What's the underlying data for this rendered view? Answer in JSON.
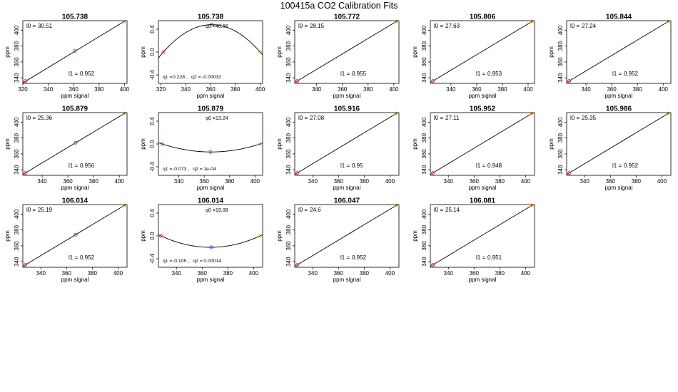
{
  "title": "100415a   CO2 Calibration Fits",
  "chart_data": [
    {
      "type": "line",
      "fit": "linear",
      "title": "105.738",
      "xlabel": "ppm signal",
      "ylabel": "ppm",
      "xlim": [
        320,
        402
      ],
      "ylim": [
        333,
        412
      ],
      "xticks": [
        320,
        340,
        360,
        380,
        400
      ],
      "yticks": [
        340,
        360,
        380,
        400
      ],
      "points": [
        {
          "x": 322,
          "y": 336,
          "color": "#e03030"
        },
        {
          "x": 361,
          "y": 374,
          "color": "#6040e0"
        },
        {
          "x": 400,
          "y": 411,
          "color": "#f0a020"
        }
      ],
      "curve": {
        "x1": 320,
        "y1": 333.6,
        "x2": 402,
        "y2": 413.2
      },
      "annotations": [
        {
          "label": "l0 =",
          "value": "30.51"
        },
        {
          "label": "l1 =",
          "value": "0.952"
        }
      ]
    },
    {
      "type": "line",
      "fit": "quadratic",
      "title": "105.738",
      "xlabel": "ppm signal",
      "ylabel": "ppm",
      "xlim": [
        318,
        402
      ],
      "ylim": [
        -0.55,
        0.55
      ],
      "xticks": [
        320,
        340,
        360,
        380,
        400
      ],
      "yticks": [
        -0.4,
        0.0,
        0.4
      ],
      "points": [
        {
          "x": 322,
          "y": 0.0,
          "color": "#e03030"
        },
        {
          "x": 361,
          "y": 0.48,
          "color": "#6040e0"
        },
        {
          "x": 400,
          "y": 0.0,
          "color": "#f0a020"
        }
      ],
      "curve": {
        "r1": 322,
        "r2": 400,
        "ext": 0.48
      },
      "annotations": [
        {
          "label": "q0 =",
          "value": "40.66"
        },
        {
          "label": "q1 =",
          "value": "0.228"
        },
        {
          "label": "q2 =",
          "value": "-0.00032"
        }
      ]
    },
    {
      "type": "line",
      "fit": "linear",
      "title": "105.772",
      "xlabel": "ppm signal",
      "ylabel": "ppm",
      "xlim": [
        323,
        404
      ],
      "ylim": [
        333,
        412
      ],
      "xticks": [
        340,
        360,
        380,
        400
      ],
      "yticks": [
        340,
        360,
        380,
        400
      ],
      "points": [
        {
          "x": 325,
          "y": 336,
          "color": "#e03030"
        },
        {
          "x": 402,
          "y": 411,
          "color": "#f0a020"
        }
      ],
      "curve": {
        "x1": 323,
        "y1": 334.1,
        "x2": 404,
        "y2": 412.9
      },
      "annotations": [
        {
          "label": "l0 =",
          "value": "28.15"
        },
        {
          "label": "l1 =",
          "value": "0.955"
        }
      ]
    },
    {
      "type": "line",
      "fit": "linear",
      "title": "105.806",
      "xlabel": "ppm signal",
      "ylabel": "ppm",
      "xlim": [
        324,
        405
      ],
      "ylim": [
        333,
        412
      ],
      "xticks": [
        340,
        360,
        380,
        400
      ],
      "yticks": [
        340,
        360,
        380,
        400
      ],
      "points": [
        {
          "x": 326,
          "y": 336,
          "color": "#e03030"
        },
        {
          "x": 403,
          "y": 411,
          "color": "#f0a020"
        }
      ],
      "curve": {
        "x1": 324,
        "y1": 334.1,
        "x2": 405,
        "y2": 412.9
      },
      "annotations": [
        {
          "label": "l0 =",
          "value": "27.63"
        },
        {
          "label": "l1 =",
          "value": "0.953"
        }
      ]
    },
    {
      "type": "line",
      "fit": "linear",
      "title": "105.844",
      "xlabel": "ppm signal",
      "ylabel": "ppm",
      "xlim": [
        325,
        406
      ],
      "ylim": [
        333,
        412
      ],
      "xticks": [
        340,
        360,
        380,
        400
      ],
      "yticks": [
        340,
        360,
        380,
        400
      ],
      "points": [
        {
          "x": 327,
          "y": 336,
          "color": "#e03030"
        },
        {
          "x": 404,
          "y": 411,
          "color": "#f0a020"
        }
      ],
      "curve": {
        "x1": 325,
        "y1": 334.1,
        "x2": 406,
        "y2": 412.9
      },
      "annotations": [
        {
          "label": "l0 =",
          "value": "27.24"
        },
        {
          "label": "l1 =",
          "value": "0.952"
        }
      ]
    },
    {
      "type": "line",
      "fit": "linear",
      "title": "105.879",
      "xlabel": "ppm signal",
      "ylabel": "ppm",
      "xlim": [
        325,
        406
      ],
      "ylim": [
        333,
        412
      ],
      "xticks": [
        340,
        360,
        380,
        400
      ],
      "yticks": [
        340,
        360,
        380,
        400
      ],
      "points": [
        {
          "x": 327,
          "y": 336,
          "color": "#e03030"
        },
        {
          "x": 366,
          "y": 374,
          "color": "#6040e0"
        },
        {
          "x": 404,
          "y": 411,
          "color": "#f0a020"
        }
      ],
      "curve": {
        "x1": 325,
        "y1": 334.1,
        "x2": 406,
        "y2": 412.9
      },
      "annotations": [
        {
          "label": "l0 =",
          "value": "25.36"
        },
        {
          "label": "l1 =",
          "value": "0.956"
        }
      ]
    },
    {
      "type": "line",
      "fit": "quadratic",
      "title": "105.879",
      "xlabel": "ppm signal",
      "ylabel": "ppm",
      "xlim": [
        324,
        406
      ],
      "ylim": [
        -0.55,
        0.55
      ],
      "xticks": [
        340,
        360,
        380,
        400
      ],
      "yticks": [
        -0.4,
        0.0,
        0.4
      ],
      "points": [
        {
          "x": 327,
          "y": 0.0,
          "color": "#e03030"
        },
        {
          "x": 365,
          "y": -0.14,
          "color": "#6040e0"
        },
        {
          "x": 404,
          "y": 0.0,
          "color": "#f0a020"
        }
      ],
      "curve": {
        "r1": 327,
        "r2": 404,
        "ext": -0.14
      },
      "annotations": [
        {
          "label": "q0 =",
          "value": "13.24"
        },
        {
          "label": "q1 =",
          "value": "-0.073"
        },
        {
          "label": "q2 =",
          "value": "1e-04"
        }
      ]
    },
    {
      "type": "line",
      "fit": "linear",
      "title": "105.916",
      "xlabel": "ppm signal",
      "ylabel": "ppm",
      "xlim": [
        326,
        407
      ],
      "ylim": [
        333,
        412
      ],
      "xticks": [
        340,
        360,
        380,
        400
      ],
      "yticks": [
        340,
        360,
        380,
        400
      ],
      "points": [
        {
          "x": 328,
          "y": 336,
          "color": "#e03030"
        },
        {
          "x": 405,
          "y": 411,
          "color": "#f0a020"
        }
      ],
      "curve": {
        "x1": 326,
        "y1": 334.1,
        "x2": 407,
        "y2": 412.9
      },
      "annotations": [
        {
          "label": "l0 =",
          "value": "27.08"
        },
        {
          "label": "l1 =",
          "value": "0.95"
        }
      ]
    },
    {
      "type": "line",
      "fit": "linear",
      "title": "105.952",
      "xlabel": "ppm signal",
      "ylabel": "ppm",
      "xlim": [
        326,
        407
      ],
      "ylim": [
        333,
        412
      ],
      "xticks": [
        340,
        360,
        380,
        400
      ],
      "yticks": [
        340,
        360,
        380,
        400
      ],
      "points": [
        {
          "x": 328,
          "y": 336,
          "color": "#e03030"
        },
        {
          "x": 405,
          "y": 411,
          "color": "#f0a020"
        }
      ],
      "curve": {
        "x1": 326,
        "y1": 334.1,
        "x2": 407,
        "y2": 412.9
      },
      "annotations": [
        {
          "label": "l0 =",
          "value": "27.11"
        },
        {
          "label": "l1 =",
          "value": "0.948"
        }
      ]
    },
    {
      "type": "line",
      "fit": "linear",
      "title": "105.986",
      "xlabel": "ppm signal",
      "ylabel": "ppm",
      "xlim": [
        326,
        407
      ],
      "ylim": [
        333,
        412
      ],
      "xticks": [
        340,
        360,
        380,
        400
      ],
      "yticks": [
        340,
        360,
        380,
        400
      ],
      "points": [
        {
          "x": 328,
          "y": 336,
          "color": "#e03030"
        },
        {
          "x": 405,
          "y": 411,
          "color": "#f0a020"
        }
      ],
      "curve": {
        "x1": 326,
        "y1": 334.1,
        "x2": 407,
        "y2": 412.9
      },
      "annotations": [
        {
          "label": "l0 =",
          "value": "25.35"
        },
        {
          "label": "l1 =",
          "value": "0.952"
        }
      ]
    },
    {
      "type": "line",
      "fit": "linear",
      "title": "106.014",
      "xlabel": "ppm signal",
      "ylabel": "ppm",
      "xlim": [
        326,
        407
      ],
      "ylim": [
        333,
        412
      ],
      "xticks": [
        340,
        360,
        380,
        400
      ],
      "yticks": [
        340,
        360,
        380,
        400
      ],
      "points": [
        {
          "x": 328,
          "y": 336,
          "color": "#e03030"
        },
        {
          "x": 367,
          "y": 374,
          "color": "#6040e0"
        },
        {
          "x": 405,
          "y": 411,
          "color": "#f0a020"
        }
      ],
      "curve": {
        "x1": 326,
        "y1": 334.1,
        "x2": 407,
        "y2": 412.9
      },
      "annotations": [
        {
          "label": "l0 =",
          "value": "25.19"
        },
        {
          "label": "l1 =",
          "value": "0.952"
        }
      ]
    },
    {
      "type": "line",
      "fit": "quadratic",
      "title": "106.014",
      "xlabel": "ppm signal",
      "ylabel": "ppm",
      "xlim": [
        326,
        407
      ],
      "ylim": [
        -0.55,
        0.55
      ],
      "xticks": [
        340,
        360,
        380,
        400
      ],
      "yticks": [
        -0.4,
        0.0,
        0.4
      ],
      "points": [
        {
          "x": 328,
          "y": 0.0,
          "color": "#e03030"
        },
        {
          "x": 367,
          "y": -0.2,
          "color": "#6040e0"
        },
        {
          "x": 405,
          "y": 0.0,
          "color": "#f0a020"
        }
      ],
      "curve": {
        "r1": 328,
        "r2": 405,
        "ext": -0.2
      },
      "annotations": [
        {
          "label": "q0 =",
          "value": "19.08"
        },
        {
          "label": "q1 =",
          "value": "-0.105"
        },
        {
          "label": "q2 =",
          "value": "0.00014"
        }
      ]
    },
    {
      "type": "line",
      "fit": "linear",
      "title": "106.047",
      "xlabel": "ppm signal",
      "ylabel": "ppm",
      "xlim": [
        326,
        407
      ],
      "ylim": [
        333,
        412
      ],
      "xticks": [
        340,
        360,
        380,
        400
      ],
      "yticks": [
        340,
        360,
        380,
        400
      ],
      "points": [
        {
          "x": 328,
          "y": 336,
          "color": "#e03030"
        },
        {
          "x": 405,
          "y": 411,
          "color": "#f0a020"
        }
      ],
      "curve": {
        "x1": 326,
        "y1": 334.1,
        "x2": 407,
        "y2": 412.9
      },
      "annotations": [
        {
          "label": "l0 =",
          "value": "24.6"
        },
        {
          "label": "l1 =",
          "value": "0.952"
        }
      ]
    },
    {
      "type": "line",
      "fit": "linear",
      "title": "106.081",
      "xlabel": "ppm signal",
      "ylabel": "ppm",
      "xlim": [
        326,
        407
      ],
      "ylim": [
        333,
        412
      ],
      "xticks": [
        340,
        360,
        380,
        400
      ],
      "yticks": [
        340,
        360,
        380,
        400
      ],
      "points": [
        {
          "x": 328,
          "y": 336,
          "color": "#e03030"
        },
        {
          "x": 405,
          "y": 411,
          "color": "#f0a020"
        }
      ],
      "curve": {
        "x1": 326,
        "y1": 334.1,
        "x2": 407,
        "y2": 412.9
      },
      "annotations": [
        {
          "label": "l0 =",
          "value": "25.14"
        },
        {
          "label": "l1 =",
          "value": "0.951"
        }
      ]
    }
  ]
}
